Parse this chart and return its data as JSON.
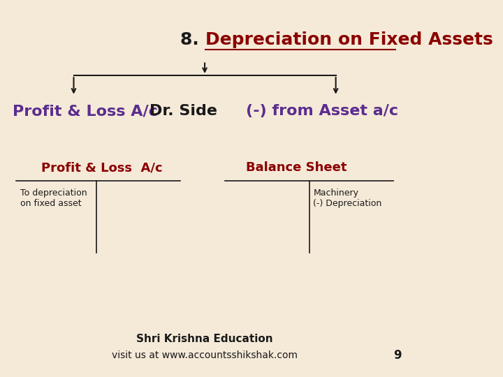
{
  "bg_color": "#f5ead8",
  "title_prefix": "8. ",
  "title_main": "Depreciation on Fixed Assets",
  "title_prefix_color": "#1a1a1a",
  "title_main_color": "#8b0000",
  "left_branch_purple": "Profit & Loss A/c ",
  "left_branch_black": "Dr. Side",
  "right_branch_text": "(-) from Asset a/c",
  "branch_color_purple": "#5b2d8e",
  "branch_color_black": "#1a1a1a",
  "left_ledger_title": "Profit & Loss  A/c",
  "right_ledger_title": "Balance Sheet",
  "ledger_title_color": "#8b0000",
  "left_entry_text": "To depreciation\non fixed asset",
  "right_entry_text": "Machinery\n(-) Depreciation",
  "entry_text_color": "#1a1a1a",
  "arrow_color": "#1a1a1a",
  "line_color": "#1a1a1a",
  "footer_line1": "Shri Krishna Education",
  "footer_line2": "visit us at www.accountsshikshak.com",
  "footer_color": "#1a1a1a",
  "page_number": "9"
}
